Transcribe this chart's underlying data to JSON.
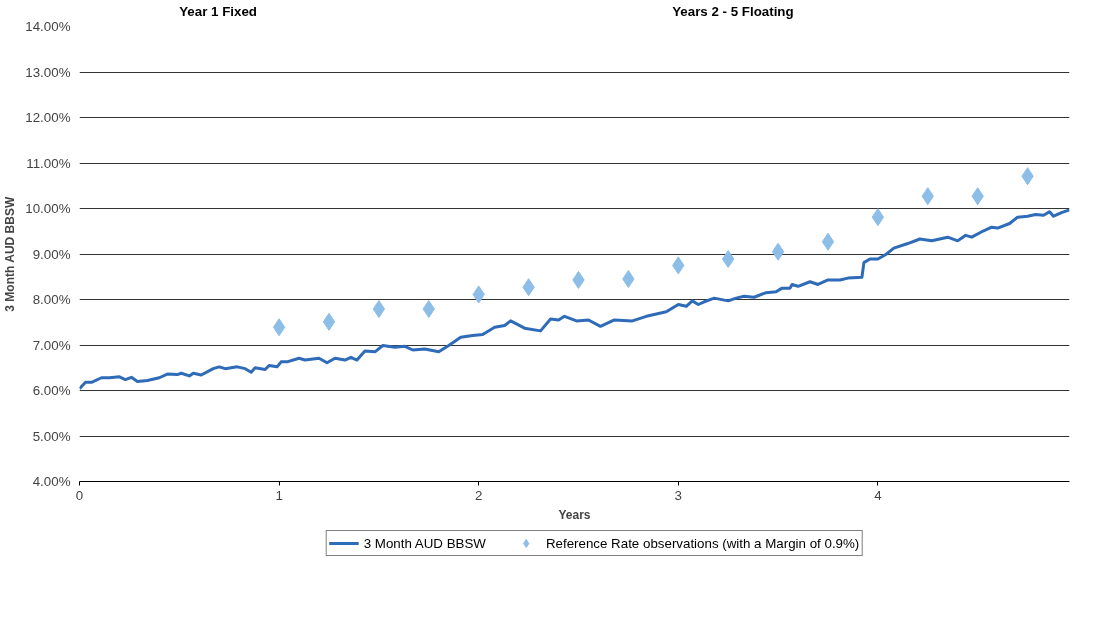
{
  "chart_data": {
    "type": "line",
    "ylabel": "3 Month AUD BBSW",
    "xlabel": "Years",
    "annotations": [
      "Year 1 Fixed",
      "Years 2 - 5 Floating"
    ],
    "xlim": [
      0,
      4.96
    ],
    "xticks": [
      0,
      1,
      2,
      3,
      4
    ],
    "ylim": [
      4,
      14
    ],
    "yticks": [
      {
        "value": 4,
        "label": "4.00%"
      },
      {
        "value": 5,
        "label": "5.00%"
      },
      {
        "value": 6,
        "label": "6.00%"
      },
      {
        "value": 7,
        "label": "7.00%"
      },
      {
        "value": 8,
        "label": "8.00%"
      },
      {
        "value": 9,
        "label": "9.00%"
      },
      {
        "value": 10,
        "label": "10.00%"
      },
      {
        "value": 11,
        "label": "11.00%"
      },
      {
        "value": 12,
        "label": "12.00%"
      },
      {
        "value": 13,
        "label": "13.00%"
      },
      {
        "value": 14,
        "label": "14.00%"
      }
    ],
    "grid": "y",
    "legend": "bottom",
    "series": [
      {
        "name": "3 Month AUD BBSW",
        "color": "#2e6bb8",
        "line_style": "solid",
        "marker": "none",
        "x": [
          0.0,
          0.03,
          0.06,
          0.11,
          0.15,
          0.2,
          0.23,
          0.26,
          0.29,
          0.34,
          0.4,
          0.44,
          0.49,
          0.51,
          0.55,
          0.57,
          0.61,
          0.67,
          0.7,
          0.73,
          0.79,
          0.83,
          0.86,
          0.88,
          0.93,
          0.95,
          0.99,
          1.01,
          1.04,
          1.1,
          1.13,
          1.2,
          1.24,
          1.28,
          1.33,
          1.36,
          1.39,
          1.43,
          1.48,
          1.52,
          1.58,
          1.63,
          1.67,
          1.73,
          1.8,
          1.85,
          1.91,
          1.97,
          2.02,
          2.08,
          2.13,
          2.16,
          2.23,
          2.31,
          2.36,
          2.4,
          2.43,
          2.49,
          2.55,
          2.61,
          2.68,
          2.77,
          2.84,
          2.94,
          3.0,
          3.04,
          3.07,
          3.1,
          3.13,
          3.18,
          3.25,
          3.29,
          3.33,
          3.38,
          3.44,
          3.49,
          3.52,
          3.56,
          3.57,
          3.6,
          3.66,
          3.7,
          3.75,
          3.81,
          3.85,
          3.92,
          3.93,
          3.96,
          4.0,
          4.04,
          4.08,
          4.15,
          4.21,
          4.27,
          4.35,
          4.4,
          4.44,
          4.47,
          4.53,
          4.57,
          4.6,
          4.66,
          4.7,
          4.75,
          4.79,
          4.83,
          4.86,
          4.88,
          4.92,
          4.96
        ],
        "values": [
          6.04,
          6.18,
          6.18,
          6.28,
          6.28,
          6.3,
          6.24,
          6.29,
          6.2,
          6.22,
          6.28,
          6.36,
          6.35,
          6.38,
          6.32,
          6.38,
          6.34,
          6.48,
          6.52,
          6.48,
          6.52,
          6.48,
          6.4,
          6.5,
          6.46,
          6.55,
          6.52,
          6.63,
          6.63,
          6.71,
          6.67,
          6.71,
          6.61,
          6.71,
          6.67,
          6.73,
          6.67,
          6.87,
          6.85,
          6.99,
          6.95,
          6.97,
          6.89,
          6.91,
          6.85,
          6.99,
          7.17,
          7.21,
          7.23,
          7.39,
          7.43,
          7.53,
          7.37,
          7.31,
          7.57,
          7.55,
          7.63,
          7.53,
          7.55,
          7.41,
          7.55,
          7.53,
          7.63,
          7.73,
          7.89,
          7.85,
          7.97,
          7.89,
          7.95,
          8.03,
          7.97,
          8.03,
          8.07,
          8.05,
          8.15,
          8.17,
          8.25,
          8.25,
          8.33,
          8.29,
          8.39,
          8.33,
          8.43,
          8.43,
          8.47,
          8.49,
          8.81,
          8.89,
          8.89,
          8.99,
          9.13,
          9.23,
          9.33,
          9.29,
          9.37,
          9.29,
          9.41,
          9.37,
          9.51,
          9.59,
          9.57,
          9.67,
          9.81,
          9.83,
          9.87,
          9.85,
          9.93,
          9.83,
          9.91,
          9.97
        ]
      },
      {
        "name": "Reference Rate observations (with a Margin of 0.9%)",
        "type": "scatter",
        "color": "#8dbee8",
        "marker": "diamond",
        "x": [
          1,
          1.25,
          1.5,
          1.75,
          2,
          2.25,
          2.5,
          2.75,
          3,
          3.25,
          3.5,
          3.75,
          4,
          4.25,
          4.5,
          4.75
        ],
        "values": [
          7.39,
          7.51,
          7.79,
          7.79,
          8.11,
          8.27,
          8.43,
          8.45,
          8.75,
          8.89,
          9.05,
          9.27,
          9.81,
          10.27,
          10.27,
          10.71
        ]
      }
    ]
  }
}
